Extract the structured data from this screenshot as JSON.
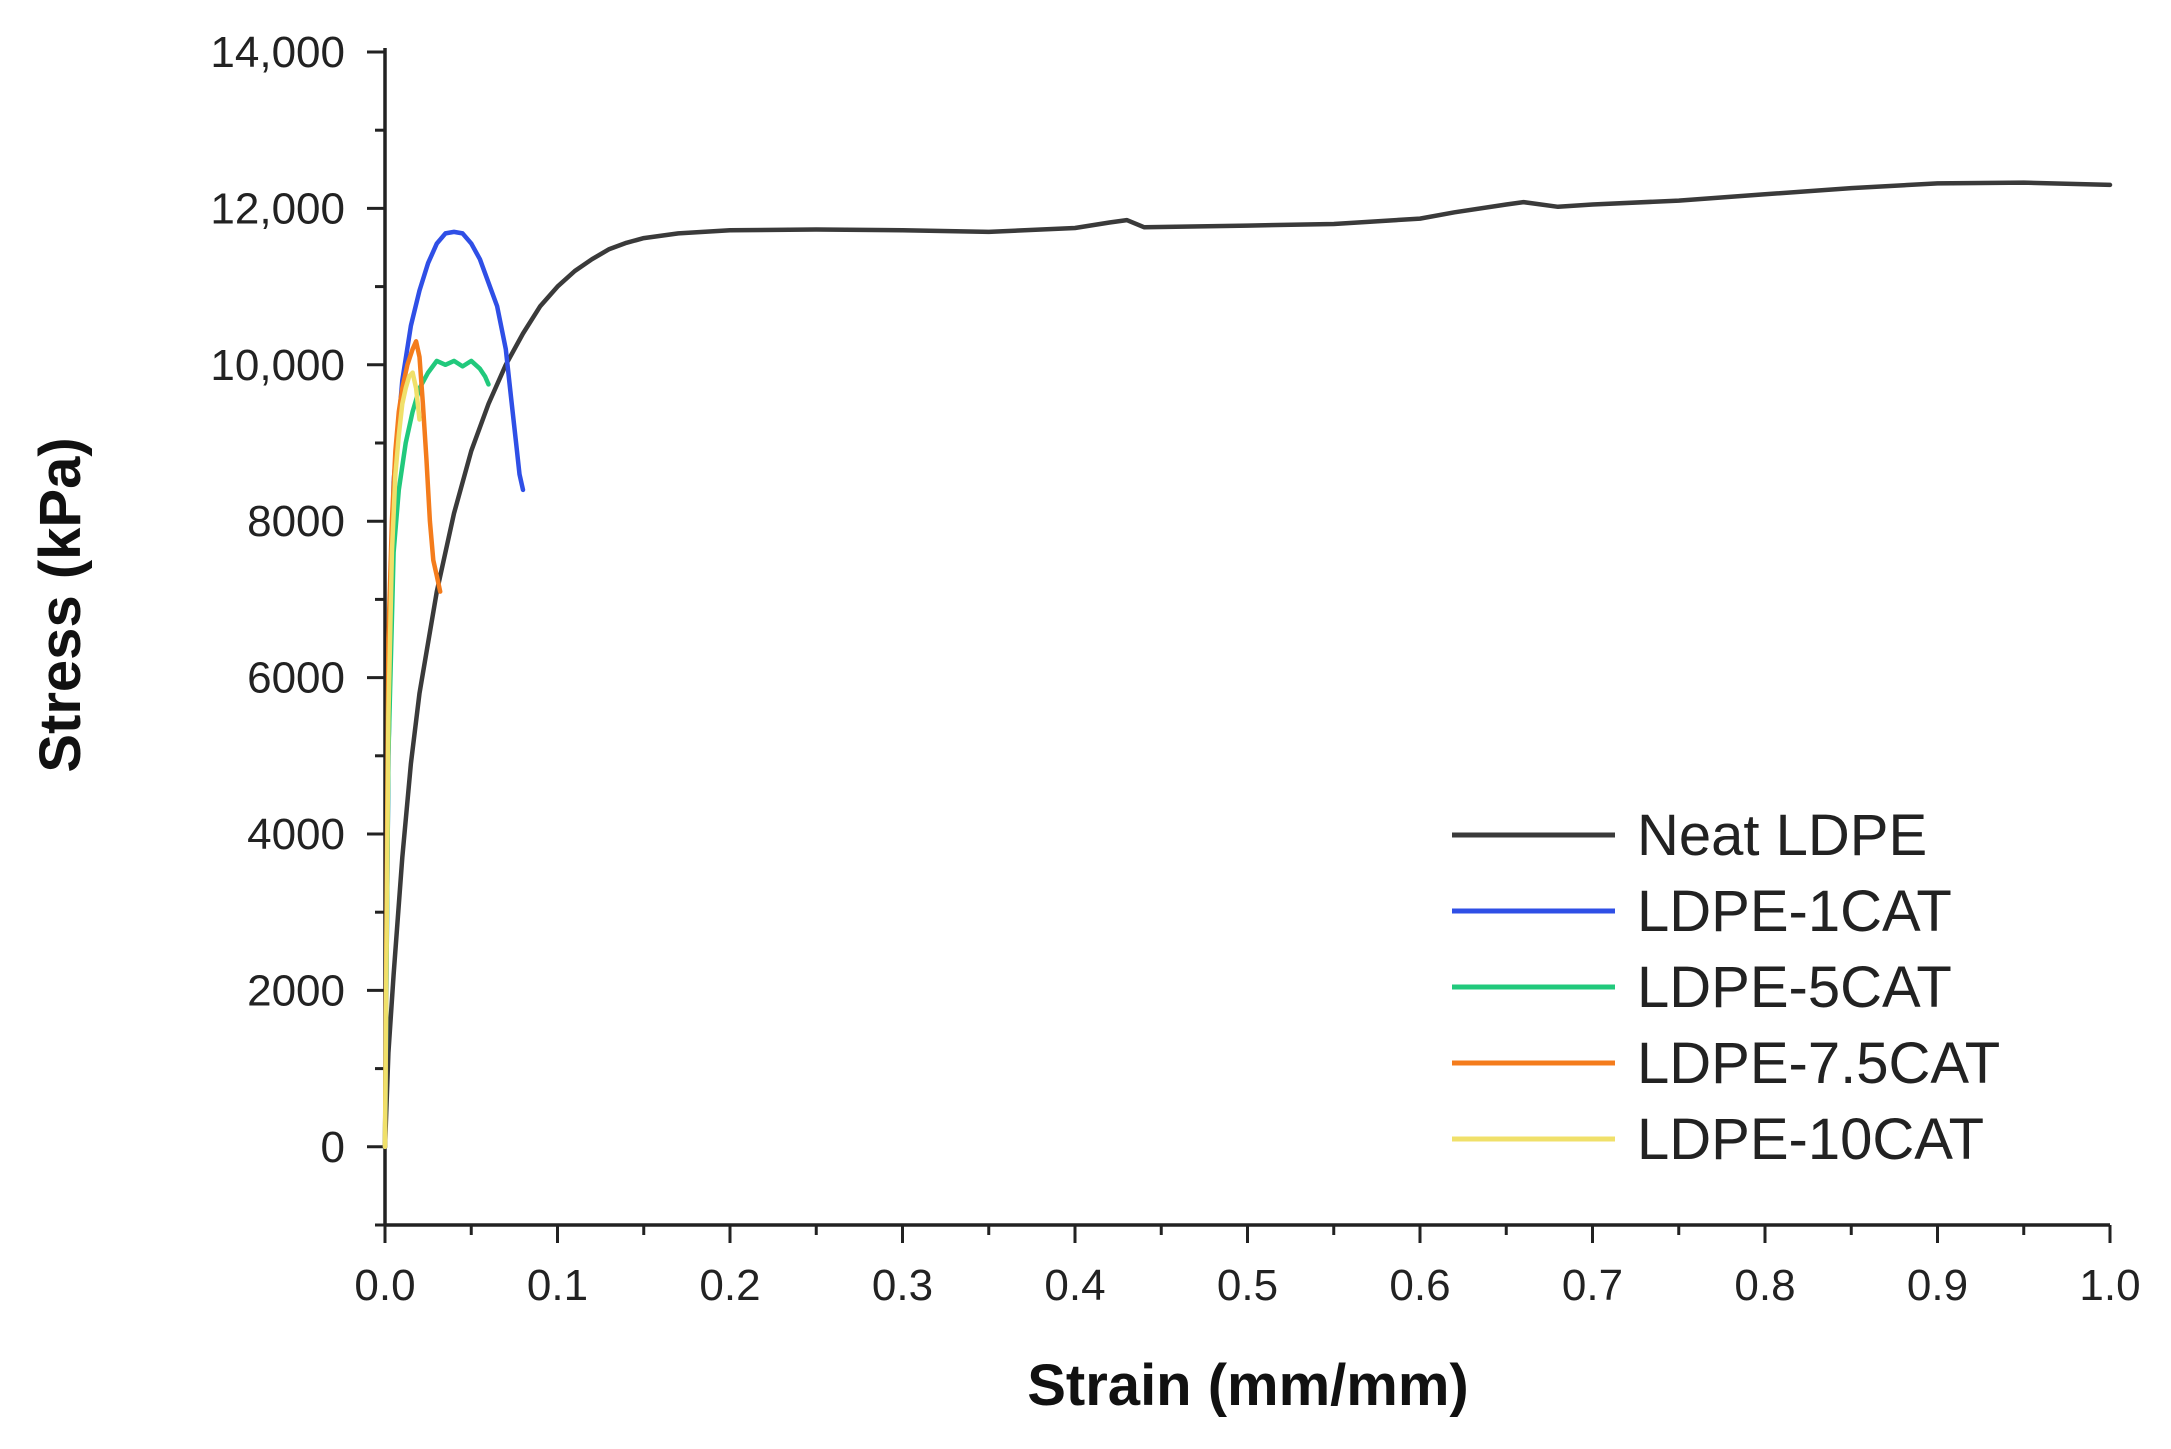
{
  "chart_data": {
    "type": "line",
    "title": "",
    "xlabel": "Strain (mm/mm)",
    "ylabel": "Stress (kPa)",
    "xlim": [
      0.0,
      1.0
    ],
    "ylim": [
      -1000,
      14000
    ],
    "x_ticks": [
      {
        "value": 0.0,
        "label": "0.0"
      },
      {
        "value": 0.1,
        "label": "0.1"
      },
      {
        "value": 0.2,
        "label": "0.2"
      },
      {
        "value": 0.3,
        "label": "0.3"
      },
      {
        "value": 0.4,
        "label": "0.4"
      },
      {
        "value": 0.5,
        "label": "0.5"
      },
      {
        "value": 0.6,
        "label": "0.6"
      },
      {
        "value": 0.7,
        "label": "0.7"
      },
      {
        "value": 0.8,
        "label": "0.8"
      },
      {
        "value": 0.9,
        "label": "0.9"
      },
      {
        "value": 1.0,
        "label": "1.0"
      }
    ],
    "y_ticks": [
      {
        "value": 0,
        "label": "0"
      },
      {
        "value": 2000,
        "label": "2000"
      },
      {
        "value": 4000,
        "label": "4000"
      },
      {
        "value": 6000,
        "label": "6000"
      },
      {
        "value": 8000,
        "label": "8000"
      },
      {
        "value": 10000,
        "label": "10,000"
      },
      {
        "value": 12000,
        "label": "12,000"
      },
      {
        "value": 14000,
        "label": "14,000"
      }
    ],
    "grid": false,
    "legend_position": "bottom-right",
    "series": [
      {
        "name": "Neat LDPE",
        "color": "#3a3a3a",
        "x": [
          0.0,
          0.002,
          0.005,
          0.01,
          0.015,
          0.02,
          0.03,
          0.04,
          0.05,
          0.06,
          0.07,
          0.08,
          0.09,
          0.1,
          0.11,
          0.12,
          0.13,
          0.14,
          0.15,
          0.17,
          0.2,
          0.25,
          0.3,
          0.35,
          0.4,
          0.42,
          0.43,
          0.44,
          0.5,
          0.55,
          0.6,
          0.62,
          0.65,
          0.66,
          0.68,
          0.7,
          0.75,
          0.8,
          0.85,
          0.9,
          0.95,
          1.0
        ],
        "y": [
          0,
          1200,
          2200,
          3700,
          4900,
          5800,
          7100,
          8100,
          8900,
          9500,
          10000,
          10400,
          10750,
          11000,
          11200,
          11350,
          11480,
          11560,
          11620,
          11680,
          11720,
          11730,
          11720,
          11700,
          11750,
          11820,
          11850,
          11760,
          11780,
          11800,
          11870,
          11950,
          12050,
          12080,
          12020,
          12050,
          12100,
          12180,
          12260,
          12320,
          12330,
          12300
        ]
      },
      {
        "name": "LDPE-1CAT",
        "color": "#2f4fe6",
        "x": [
          0.0,
          0.002,
          0.005,
          0.01,
          0.015,
          0.02,
          0.025,
          0.03,
          0.035,
          0.04,
          0.045,
          0.05,
          0.055,
          0.06,
          0.065,
          0.07,
          0.073,
          0.076,
          0.078,
          0.08
        ],
        "y": [
          0,
          5000,
          8500,
          9800,
          10500,
          10950,
          11300,
          11550,
          11680,
          11700,
          11680,
          11550,
          11350,
          11050,
          10750,
          10200,
          9600,
          9000,
          8600,
          8400
        ]
      },
      {
        "name": "LDPE-5CAT",
        "color": "#21c97c",
        "x": [
          0.0,
          0.002,
          0.005,
          0.008,
          0.012,
          0.016,
          0.02,
          0.025,
          0.03,
          0.035,
          0.04,
          0.045,
          0.05,
          0.055,
          0.058,
          0.06
        ],
        "y": [
          0,
          5000,
          7600,
          8400,
          9000,
          9400,
          9700,
          9900,
          10050,
          10000,
          10050,
          9980,
          10050,
          9950,
          9850,
          9750
        ]
      },
      {
        "name": "LDPE-7.5CAT",
        "color": "#f47c1c",
        "x": [
          0.0,
          0.002,
          0.004,
          0.006,
          0.008,
          0.01,
          0.013,
          0.016,
          0.018,
          0.02,
          0.022,
          0.024,
          0.026,
          0.028,
          0.03,
          0.032
        ],
        "y": [
          0,
          6500,
          8000,
          8900,
          9400,
          9700,
          10000,
          10200,
          10300,
          10100,
          9500,
          8800,
          8000,
          7500,
          7300,
          7100
        ]
      },
      {
        "name": "LDPE-10CAT",
        "color": "#f0e06a",
        "x": [
          0.0,
          0.002,
          0.004,
          0.006,
          0.008,
          0.01,
          0.012,
          0.014,
          0.016,
          0.018,
          0.02
        ],
        "y": [
          0,
          5500,
          7600,
          8600,
          9100,
          9500,
          9700,
          9850,
          9900,
          9700,
          9300
        ]
      }
    ]
  }
}
